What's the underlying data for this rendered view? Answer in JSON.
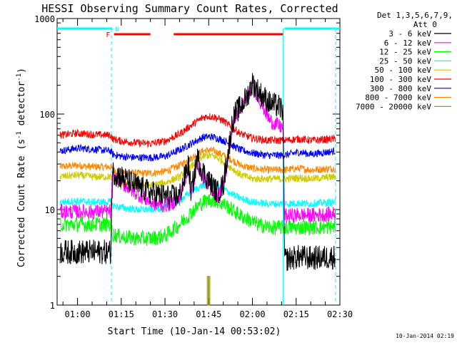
{
  "chart_data": {
    "type": "line",
    "title": "HESSI Observing Summary Count Rates, Corrected",
    "xlabel": "Start Time (10-Jan-14 00:53:02)",
    "ylabel_main": "Corrected Count Rate (s",
    "ylabel_sup1": "-1",
    "ylabel_mid": " detector",
    "ylabel_sup2": "-1",
    "ylabel_end": ")",
    "ylog": true,
    "ylim": [
      1,
      1000
    ],
    "xlim_min": [
      53,
      150
    ],
    "y_ticks": [
      {
        "value": 1,
        "label": "1"
      },
      {
        "value": 10,
        "label": "10"
      },
      {
        "value": 100,
        "label": "100"
      },
      {
        "value": 1000,
        "label": "1000"
      }
    ],
    "x_ticks": [
      {
        "value": 60,
        "label": "01:00"
      },
      {
        "value": 75,
        "label": "01:15"
      },
      {
        "value": 90,
        "label": "01:30"
      },
      {
        "value": 105,
        "label": "01:45"
      },
      {
        "value": 120,
        "label": "02:00"
      },
      {
        "value": 135,
        "label": "02:15"
      },
      {
        "value": 150,
        "label": "02:30"
      }
    ],
    "legend_header": [
      "Det 1,3,5,6,7,9,",
      "Att 0"
    ],
    "legend_position": "right",
    "series": [
      {
        "name": "3 - 6 keV",
        "color": "#000000",
        "x": [
          54,
          60,
          65,
          71.4,
          72,
          75,
          80,
          85,
          89,
          92,
          95,
          96,
          98,
          99,
          100,
          101,
          103,
          105,
          108,
          110,
          111,
          112,
          113,
          114,
          115,
          116,
          118,
          120,
          123,
          126,
          129,
          130.5,
          131,
          136,
          140,
          148.5
        ],
        "y": [
          3.6,
          3.6,
          3.6,
          3.6,
          25,
          22,
          18,
          15,
          14,
          13.5,
          14,
          18,
          30,
          15,
          22,
          35,
          25,
          20,
          15,
          18,
          30,
          45,
          80,
          100,
          110,
          120,
          150,
          210,
          160,
          130,
          120,
          110,
          3,
          3.2,
          3.1,
          3.2
        ]
      },
      {
        "name": "6 - 12 keV",
        "color": "#ff00ff",
        "x": [
          54,
          60,
          65,
          71.4,
          72,
          75,
          80,
          85,
          89,
          92,
          95,
          98,
          99,
          100,
          101,
          103,
          105,
          108,
          110,
          112,
          113,
          114,
          116,
          118,
          120,
          123,
          126,
          129,
          130.5,
          131,
          136,
          140,
          148.5
        ],
        "y": [
          9.5,
          9.5,
          9.5,
          9.5,
          22,
          19,
          15,
          12,
          11,
          11.5,
          13,
          28,
          14,
          20,
          32,
          22,
          18,
          14,
          17,
          40,
          70,
          95,
          115,
          140,
          205,
          130,
          85,
          75,
          72,
          8.5,
          8.8,
          8.7,
          9
        ]
      },
      {
        "name": "12 - 25 keV",
        "color": "#00ff00",
        "x": [
          54,
          60,
          65,
          71.4,
          72,
          75,
          80,
          85,
          90,
          95,
          100,
          103,
          105,
          107,
          110,
          113,
          115,
          118,
          122,
          126,
          129,
          130.5,
          131,
          136,
          140,
          148.5
        ],
        "y": [
          7,
          7,
          7,
          7,
          5.5,
          5.2,
          5,
          5,
          5.3,
          7,
          10,
          12,
          12.5,
          12.5,
          11.5,
          10,
          9,
          8,
          7,
          6.5,
          6.5,
          6.5,
          6.5,
          6.5,
          6.5,
          6.6
        ]
      },
      {
        "name": "25 - 50 keV",
        "color": "#00ffff",
        "x": [
          54,
          60,
          65,
          71.4,
          72,
          75,
          80,
          85,
          90,
          95,
          100,
          103,
          105,
          107,
          110,
          113,
          116,
          120,
          125,
          129,
          130.5,
          131,
          136,
          140,
          148.5
        ],
        "y": [
          12,
          12.3,
          12,
          12,
          11,
          10.5,
          10,
          10,
          10.5,
          12.5,
          16,
          18,
          18.5,
          18,
          16.5,
          14.5,
          13,
          12,
          11.5,
          11.5,
          11.5,
          11.5,
          11.7,
          11.5,
          12
        ]
      },
      {
        "name": "50 - 100 keV",
        "color": "#cccc00",
        "x": [
          54,
          60,
          65,
          71.4,
          72,
          75,
          80,
          85,
          90,
          95,
          100,
          103,
          105,
          107,
          110,
          113,
          116,
          120,
          125,
          129,
          130.5,
          131,
          136,
          140,
          148.5
        ],
        "y": [
          22,
          23,
          22,
          22,
          20,
          19,
          18,
          18,
          19,
          22,
          30,
          36,
          37,
          36,
          32,
          27,
          23,
          21,
          21,
          21,
          21,
          21,
          21.5,
          21,
          22
        ]
      },
      {
        "name": "100 - 300 keV",
        "color": "#ff0000",
        "x": [
          54,
          60,
          65,
          71.4,
          72,
          75,
          80,
          85,
          90,
          95,
          100,
          103,
          105,
          107,
          110,
          113,
          116,
          120,
          125,
          129,
          130.5,
          131,
          136,
          140,
          148.5
        ],
        "y": [
          60,
          63,
          61,
          60,
          55,
          52,
          50,
          49,
          52,
          62,
          80,
          92,
          95,
          93,
          85,
          72,
          62,
          56,
          53,
          53,
          53,
          53,
          55,
          53,
          55
        ]
      },
      {
        "name": "300 - 800 keV",
        "color": "#0000ff",
        "x": [
          54,
          60,
          65,
          71.4,
          72,
          75,
          80,
          85,
          90,
          95,
          100,
          103,
          105,
          107,
          110,
          113,
          116,
          120,
          125,
          129,
          130.5,
          131,
          136,
          140,
          148.5
        ],
        "y": [
          41,
          44,
          43,
          41,
          38,
          36,
          35,
          35,
          36,
          42,
          51,
          57,
          58,
          57,
          53,
          47,
          42,
          39,
          37,
          37,
          37,
          37,
          40,
          38,
          41
        ]
      },
      {
        "name": "800 - 7000 keV",
        "color": "#ff8800",
        "x": [
          54,
          60,
          65,
          71.4,
          72,
          75,
          80,
          85,
          90,
          95,
          100,
          103,
          105,
          107,
          110,
          113,
          116,
          120,
          125,
          129,
          130.5,
          131,
          136,
          140,
          148.5
        ],
        "y": [
          28,
          29,
          28,
          28,
          26,
          24.5,
          24,
          24,
          25,
          29,
          36,
          41,
          42,
          41,
          37,
          33,
          29,
          27,
          26,
          26,
          26,
          26,
          27,
          26,
          27
        ]
      },
      {
        "name": "7000 - 20000 keV",
        "color": "#999900",
        "x": [
          104.5,
          104.5,
          104.8,
          104.8,
          105.1,
          105.1,
          105.4,
          105.4
        ],
        "y": [
          1,
          2,
          2,
          1,
          1,
          2,
          2,
          1
        ]
      }
    ],
    "annotations": [
      {
        "label": "F",
        "color": "#ff0000"
      },
      {
        "label": "N",
        "color": "#00ffff"
      }
    ],
    "timestamp": "10-Jan-2014 02:19"
  },
  "overlays": {
    "saa_night_bars": [
      [
        53,
        72
      ],
      [
        131,
        150
      ]
    ],
    "flare_bars": [
      [
        72.5,
        85
      ],
      [
        93,
        130.5
      ]
    ],
    "vlines": [
      71.6,
      130.5,
      148.5
    ]
  }
}
